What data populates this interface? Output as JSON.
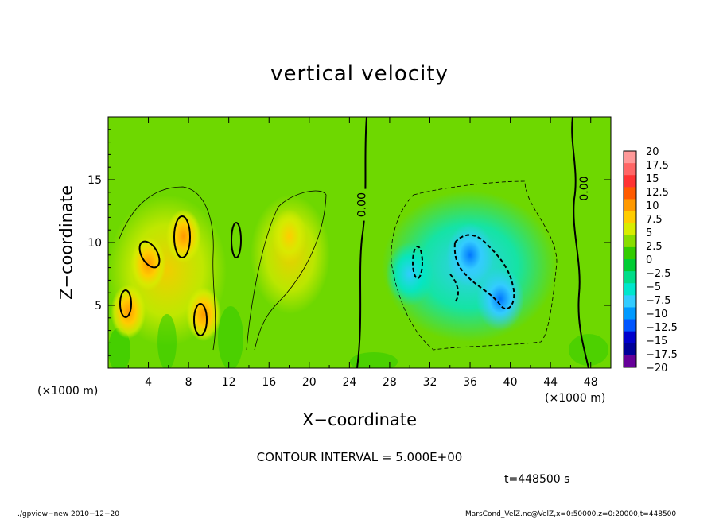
{
  "chart_data": {
    "type": "heatmap",
    "title": "vertical velocity",
    "xlabel": "X−coordinate",
    "ylabel": "Z−coordinate",
    "x_unit_left": "(×1000 m)",
    "x_unit_right": "(×1000 m)",
    "xlim": [
      0,
      50
    ],
    "ylim": [
      0,
      20
    ],
    "x_ticks": [
      "4",
      "8",
      "12",
      "16",
      "20",
      "24",
      "28",
      "32",
      "36",
      "40",
      "44",
      "48"
    ],
    "x_tick_values": [
      4,
      8,
      12,
      16,
      20,
      24,
      28,
      32,
      36,
      40,
      44,
      48
    ],
    "y_ticks": [
      "5",
      "10",
      "15"
    ],
    "y_tick_values": [
      5,
      10,
      15
    ],
    "contour_labels": [
      "0.00",
      "0.00"
    ],
    "contour_interval": "CONTOUR INTERVAL = 5.000E+00",
    "time_label": "t=448500 s",
    "colorbar": {
      "labels": [
        "20",
        "17.5",
        "15",
        "12.5",
        "10",
        "7.5",
        "5",
        "2.5",
        "0",
        "−2.5",
        "−5",
        "−7.5",
        "−10",
        "−12.5",
        "−15",
        "−17.5",
        "−20"
      ],
      "colors": [
        "#ff9999",
        "#ff6666",
        "#ff3333",
        "#ff5a00",
        "#ff9900",
        "#ffcc00",
        "#d8ec00",
        "#88dd00",
        "#33cc00",
        "#00cc33",
        "#00dd88",
        "#00e6cc",
        "#33ccff",
        "#0099ff",
        "#0055ff",
        "#0000cc",
        "#000099",
        "#660099"
      ]
    },
    "features": [
      {
        "x": 2,
        "z": 4.5,
        "value": 10
      },
      {
        "x": 4,
        "z": 8.3,
        "value": 10
      },
      {
        "x": 7.5,
        "z": 10.5,
        "value": 12.5
      },
      {
        "x": 9.5,
        "z": 4.3,
        "value": 10
      },
      {
        "x": 18,
        "z": 10.5,
        "value": 7.5
      },
      {
        "x": 30,
        "z": 7.5,
        "value": -7.5
      },
      {
        "x": 36,
        "z": 9,
        "value": -12.5
      },
      {
        "x": 39,
        "z": 5.5,
        "value": -12.5
      }
    ]
  },
  "footer": {
    "left": "./gpview−new   2010−12−20",
    "right": "MarsCond_VelZ.nc@VelZ,x=0:50000,z=0:20000,t=448500"
  }
}
